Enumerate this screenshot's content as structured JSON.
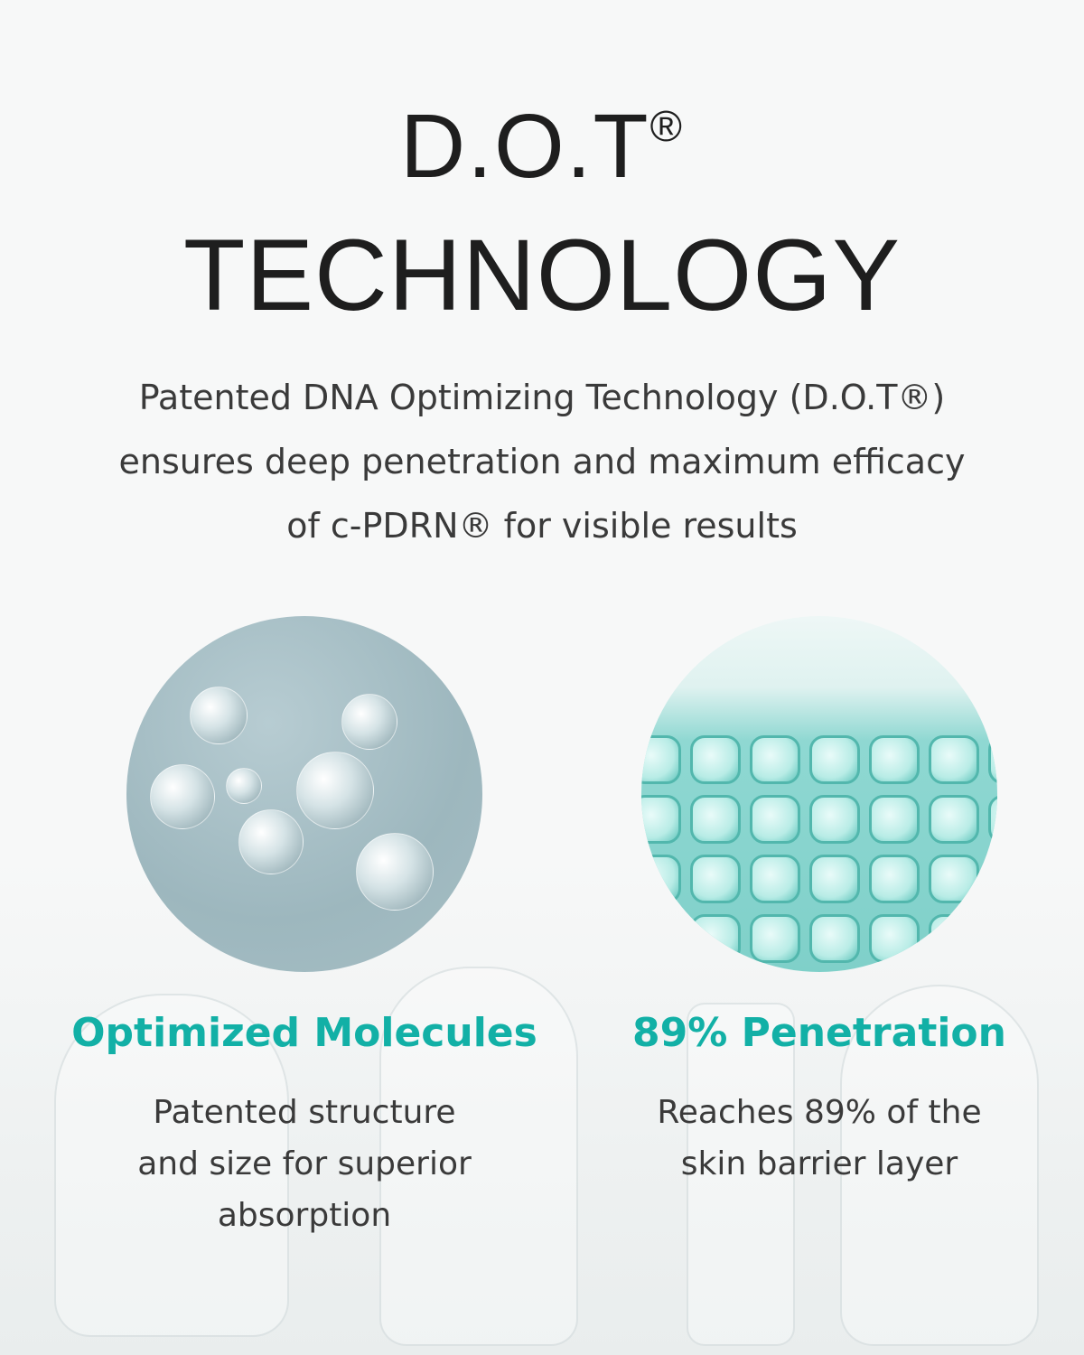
{
  "header": {
    "title_line1": "D.O.T",
    "registered": "®",
    "title_line2": "TECHNOLOGY"
  },
  "description": {
    "line1": "Patented DNA Optimizing Technology (D.O.T®)",
    "line2": "ensures deep penetration and maximum efficacy",
    "line3": "of c-PDRN®  for visible results"
  },
  "colors": {
    "accent": "#12b0a6",
    "text": "#3a3a3a",
    "title": "#1e1e1e"
  },
  "features": [
    {
      "image": "molecule-image",
      "heading": "Optimized Molecules",
      "lines": [
        "Patented structure",
        "and size for superior",
        "absorption"
      ]
    },
    {
      "image": "cell-grid-image",
      "heading": "89% Penetration",
      "lines": [
        "Reaches 89% of the",
        "skin barrier layer"
      ]
    }
  ]
}
